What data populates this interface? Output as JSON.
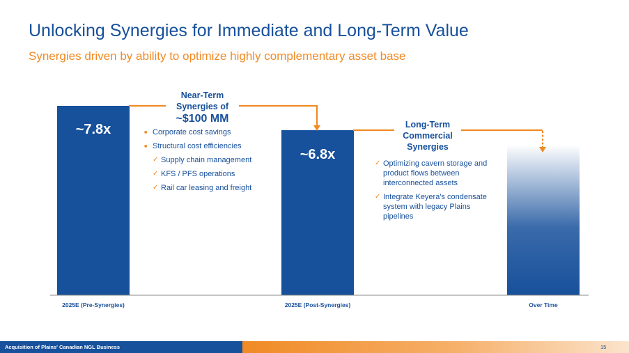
{
  "header": {
    "title": "Unlocking Synergies for Immediate and Long-Term Value",
    "subtitle": "Synergies driven by ability to optimize highly complementary asset base"
  },
  "chart_data": {
    "type": "bar",
    "categories": [
      "2025E (Pre-Synergies)",
      "2025E (Post-Synergies)",
      "Over Time"
    ],
    "values": [
      7.8,
      6.8,
      6.2
    ],
    "data_labels": [
      "~7.8x",
      "~6.8x",
      ""
    ],
    "ylim": [
      0,
      7.8
    ],
    "grid": false,
    "colors": {
      "bar": "#17509b",
      "accent": "#f08a24"
    },
    "third_bar_style": "gradient fade to white at top"
  },
  "callouts": {
    "near_term": {
      "line1": "Near-Term",
      "line2": "Synergies of",
      "line3": "~$100 MM",
      "items": [
        {
          "text": "Corporate cost savings",
          "marker": "square"
        },
        {
          "text": "Structural cost efficiencies",
          "marker": "square"
        },
        {
          "text": "Supply chain management",
          "marker": "check"
        },
        {
          "text": "KFS / PFS operations",
          "marker": "check"
        },
        {
          "text": "Rail car leasing and freight",
          "marker": "check"
        }
      ]
    },
    "long_term": {
      "line1": "Long-Term",
      "line2": "Commercial",
      "line3": "Synergies",
      "items": [
        {
          "text": "Optimizing cavern storage and product flows between interconnected assets",
          "marker": "check"
        },
        {
          "text": "Integrate Keyera's condensate system with legacy Plains pipelines",
          "marker": "check"
        }
      ]
    }
  },
  "footer": {
    "text": "Acquisition of Plains' Canadian NGL Business",
    "page_number": "15"
  }
}
